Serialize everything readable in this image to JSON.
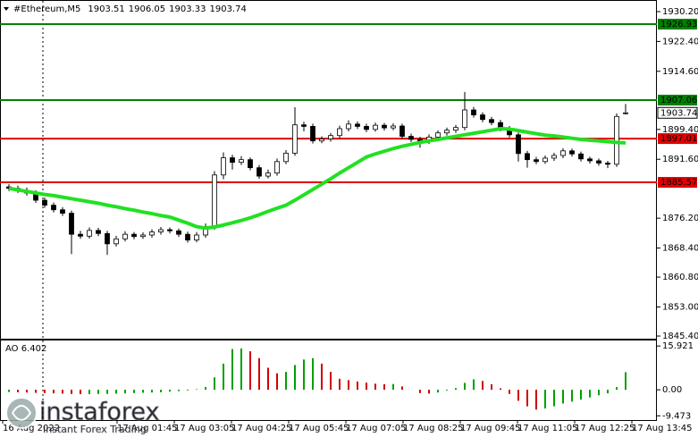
{
  "chart_data": {
    "type": "candlestick",
    "header": {
      "symbol": "#Ethereum,M5",
      "ohlc": [
        1903.51,
        1906.05,
        1903.33,
        1903.74
      ]
    },
    "open": [
      1884.4,
      1884.0,
      1883.5,
      1882.8,
      1880.9,
      1879.6,
      1878.4,
      1877.5,
      1872.0,
      1871.5,
      1873.0,
      1872.2,
      1869.5,
      1870.8,
      1872.0,
      1871.4,
      1871.8,
      1872.6,
      1873.2,
      1872.9,
      1872.0,
      1870.5,
      1871.8,
      1874.0,
      1887.5,
      1892.0,
      1890.8,
      1891.5,
      1889.4,
      1887.2,
      1888.0,
      1891.0,
      1893.2,
      1900.6,
      1900.2,
      1896.4,
      1896.9,
      1897.8,
      1899.6,
      1900.8,
      1900.2,
      1899.4,
      1900.5,
      1899.8,
      1900.3,
      1897.6,
      1896.8,
      1896.3,
      1897.4,
      1898.5,
      1899.2,
      1899.9,
      1904.5,
      1903.2,
      1902.0,
      1901.2,
      1899.6,
      1898.0,
      1893.1,
      1891.5,
      1891.0,
      1891.9,
      1892.6,
      1893.8,
      1893.0,
      1891.7,
      1891.2,
      1890.6,
      1890.3,
      1903.51
    ],
    "high": [
      1885.1,
      1884.7,
      1884.2,
      1883.5,
      1881.6,
      1880.3,
      1879.1,
      1878.2,
      1872.9,
      1873.8,
      1873.7,
      1872.9,
      1871.6,
      1872.8,
      1872.6,
      1872.5,
      1873.3,
      1873.9,
      1873.8,
      1873.5,
      1872.7,
      1872.6,
      1874.8,
      1888.5,
      1893.4,
      1892.8,
      1892.4,
      1892.1,
      1890.1,
      1888.9,
      1891.8,
      1894.0,
      1905.2,
      1901.4,
      1900.9,
      1897.6,
      1898.5,
      1900.4,
      1901.8,
      1901.5,
      1900.9,
      1901.2,
      1901.1,
      1901.0,
      1900.9,
      1898.3,
      1897.5,
      1898.1,
      1899.2,
      1899.9,
      1900.6,
      1909.2,
      1905.3,
      1903.9,
      1902.7,
      1901.9,
      1900.3,
      1898.6,
      1893.8,
      1892.2,
      1892.6,
      1893.3,
      1894.5,
      1894.4,
      1893.6,
      1892.3,
      1891.8,
      1891.2,
      1903.6,
      1906.05
    ],
    "low": [
      1883.3,
      1882.8,
      1882.1,
      1880.2,
      1878.9,
      1877.7,
      1876.8,
      1866.8,
      1870.8,
      1870.9,
      1871.5,
      1866.6,
      1868.8,
      1870.1,
      1870.7,
      1870.8,
      1871.1,
      1871.9,
      1872.2,
      1871.3,
      1869.8,
      1869.9,
      1871.1,
      1873.2,
      1886.4,
      1888.9,
      1890.1,
      1888.7,
      1886.5,
      1886.6,
      1887.3,
      1890.3,
      1892.5,
      1898.9,
      1895.7,
      1895.8,
      1896.2,
      1897.1,
      1898.9,
      1899.5,
      1898.7,
      1898.8,
      1899.1,
      1899.2,
      1896.9,
      1896.1,
      1894.6,
      1895.6,
      1896.7,
      1897.8,
      1898.5,
      1899.2,
      1902.5,
      1901.3,
      1900.5,
      1898.9,
      1897.3,
      1891.0,
      1889.4,
      1890.3,
      1890.4,
      1891.2,
      1891.9,
      1892.3,
      1891.0,
      1890.5,
      1889.9,
      1889.3,
      1889.6,
      1903.33
    ],
    "close": [
      1884.0,
      1883.5,
      1882.8,
      1880.9,
      1879.6,
      1878.4,
      1877.5,
      1872.0,
      1871.5,
      1873.0,
      1872.2,
      1869.5,
      1870.8,
      1872.0,
      1871.4,
      1871.8,
      1872.6,
      1873.2,
      1872.9,
      1872.0,
      1870.5,
      1871.8,
      1874.0,
      1887.5,
      1892.0,
      1890.8,
      1891.5,
      1889.4,
      1887.2,
      1888.0,
      1891.0,
      1893.2,
      1900.6,
      1900.2,
      1896.4,
      1896.9,
      1897.8,
      1899.6,
      1900.8,
      1900.2,
      1899.4,
      1900.5,
      1899.8,
      1900.3,
      1897.6,
      1896.8,
      1896.3,
      1897.4,
      1898.5,
      1899.2,
      1899.9,
      1904.5,
      1903.2,
      1902.0,
      1901.2,
      1899.6,
      1898.0,
      1893.1,
      1891.5,
      1891.0,
      1891.9,
      1892.6,
      1893.8,
      1893.0,
      1891.7,
      1891.2,
      1890.6,
      1890.3,
      1902.8,
      1903.74
    ],
    "ma": {
      "color": "#22e022",
      "values": [
        1884.0,
        1883.6,
        1883.2,
        1882.8,
        1882.4,
        1882.1,
        1881.7,
        1881.3,
        1880.9,
        1880.5,
        1880.1,
        1879.6,
        1879.2,
        1878.7,
        1878.3,
        1877.8,
        1877.4,
        1876.9,
        1876.5,
        1875.7,
        1874.9,
        1874.0,
        1873.6,
        1873.9,
        1874.4,
        1875.0,
        1875.6,
        1876.3,
        1877.1,
        1878.0,
        1878.8,
        1879.6,
        1880.9,
        1882.3,
        1883.7,
        1885.1,
        1886.5,
        1888.0,
        1889.4,
        1890.8,
        1892.2,
        1893.0,
        1893.7,
        1894.4,
        1895.0,
        1895.5,
        1896.0,
        1896.4,
        1896.8,
        1897.2,
        1897.6,
        1898.0,
        1898.4,
        1898.8,
        1899.2,
        1899.6,
        1899.5,
        1899.1,
        1898.7,
        1898.3,
        1897.9,
        1897.7,
        1897.4,
        1897.1,
        1896.8,
        1896.6,
        1896.4,
        1896.2,
        1896.0,
        1895.9
      ]
    },
    "levels": [
      {
        "value": 1926.93,
        "color": "#008000"
      },
      {
        "value": 1907.06,
        "color": "#008000"
      },
      {
        "value": 1897.01,
        "color": "#e00000"
      },
      {
        "value": 1885.57,
        "color": "#e00000"
      }
    ],
    "last": 1903.74,
    "ylim": [
      1844.47,
      1932.3
    ],
    "yticks": [
      {
        "value": 1930.2,
        "label": "1930.20"
      },
      {
        "value": 1922.4,
        "label": "1922.40"
      },
      {
        "value": 1914.6,
        "label": "1914.60"
      },
      {
        "value": 1899.4,
        "label": "1899.40"
      },
      {
        "value": 1891.6,
        "label": "1891.60"
      },
      {
        "value": 1876.2,
        "label": "1876.20"
      },
      {
        "value": 1868.4,
        "label": "1868.40"
      },
      {
        "value": 1860.8,
        "label": "1860.80"
      },
      {
        "value": 1853.0,
        "label": "1853.00"
      },
      {
        "value": 1845.4,
        "label": "1845.40"
      }
    ],
    "xlabels": [
      "16 Aug 2022",
      null,
      "17 Aug 01:45",
      "17 Aug 03:05",
      "17 Aug 04:25",
      "17 Aug 05:45",
      "17 Aug 07:05",
      "17 Aug 08:25",
      "17 Aug 09:45",
      "17 Aug 11:05",
      "17 Aug 12:25",
      "17 Aug 13:45"
    ],
    "indicator": {
      "type": "bar",
      "title": "AO 6.402",
      "up_color": "#00a000",
      "down_color": "#d00000",
      "values": [
        -0.8,
        -0.9,
        -1.0,
        -1.1,
        -1.2,
        -1.3,
        -1.4,
        -1.5,
        -1.6,
        -1.6,
        -1.5,
        -1.5,
        -1.4,
        -1.3,
        -1.2,
        -1.1,
        -1.0,
        -0.9,
        -0.7,
        -0.5,
        -0.3,
        0.2,
        1.0,
        4.5,
        9.5,
        14.8,
        15.0,
        14.0,
        11.5,
        8.0,
        6.0,
        6.5,
        9.0,
        11.0,
        11.5,
        9.5,
        6.5,
        4.0,
        3.5,
        3.0,
        2.6,
        2.2,
        2.0,
        2.1,
        1.2,
        0.0,
        -1.2,
        -1.4,
        -1.0,
        -0.3,
        0.6,
        2.5,
        3.8,
        3.2,
        2.0,
        0.5,
        -1.5,
        -4.0,
        -6.0,
        -7.2,
        -6.8,
        -6.0,
        -5.0,
        -4.3,
        -3.6,
        -2.8,
        -2.0,
        -1.3,
        1.0,
        6.402
      ],
      "ylim": [
        -11.0,
        17.6
      ],
      "yticks": [
        15.921,
        {
          "value": 0,
          "label": "0.00"
        },
        -9.473
      ]
    },
    "watermark": {
      "brand": "instaforex",
      "tagline": "Instant Forex Trading"
    }
  }
}
